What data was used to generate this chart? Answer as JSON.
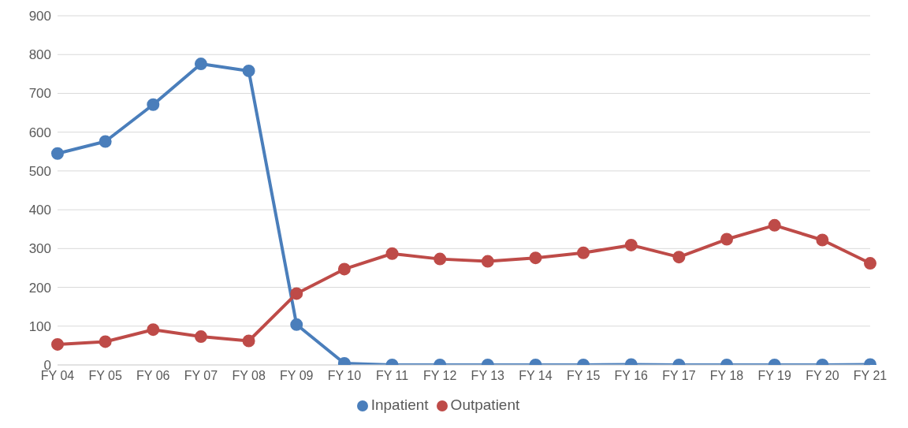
{
  "chart_data": {
    "type": "line",
    "categories": [
      "FY 04",
      "FY 05",
      "FY 06",
      "FY 07",
      "FY 08",
      "FY 09",
      "FY 10",
      "FY 11",
      "FY 12",
      "FY 13",
      "FY 14",
      "FY 15",
      "FY 16",
      "FY 17",
      "FY 18",
      "FY 19",
      "FY 20",
      "FY 21"
    ],
    "series": [
      {
        "name": "Inpatient",
        "color": "#4a7ebb",
        "values": [
          545,
          576,
          671,
          776,
          758,
          104,
          4,
          0,
          0,
          0,
          0,
          0,
          1,
          0,
          0,
          0,
          0,
          1
        ]
      },
      {
        "name": "Outpatient",
        "color": "#be4b48",
        "values": [
          53,
          60,
          91,
          73,
          62,
          184,
          247,
          287,
          273,
          267,
          276,
          289,
          309,
          278,
          324,
          360,
          322,
          262
        ]
      }
    ],
    "ylim": [
      0,
      900
    ],
    "yticks": [
      0,
      100,
      200,
      300,
      400,
      500,
      600,
      700,
      800,
      900
    ],
    "grid": "y",
    "legend": "bottom",
    "marker": "circle",
    "line_style": "solid"
  }
}
